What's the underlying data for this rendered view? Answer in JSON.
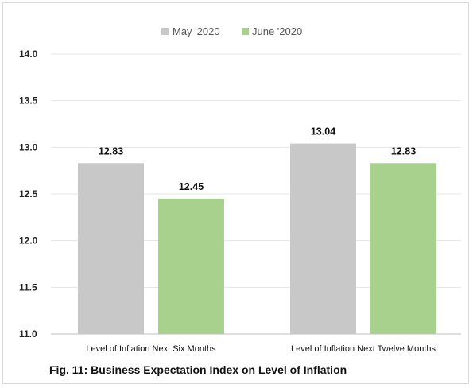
{
  "chart_data": {
    "type": "bar",
    "categories": [
      "Level of Inflation Next Six Months",
      "Level of Inflation Next Twelve Months"
    ],
    "series": [
      {
        "name": "May '2020",
        "values": [
          12.83,
          13.04
        ],
        "color": "#c8c8c8"
      },
      {
        "name": "June '2020",
        "values": [
          12.45,
          12.83
        ],
        "color": "#a9d18e"
      }
    ],
    "data_labels": [
      [
        "12.83",
        "13.04"
      ],
      [
        "12.45",
        "12.83"
      ]
    ],
    "title": "",
    "xlabel": "",
    "ylabel": "",
    "ylim": [
      11.0,
      14.0
    ],
    "yticks": [
      "11.0",
      "11.5",
      "12.0",
      "12.5",
      "13.0",
      "13.5",
      "14.0"
    ],
    "ytick_values": [
      11.0,
      11.5,
      12.0,
      12.5,
      13.0,
      13.5,
      14.0
    ],
    "grid": true,
    "legend_position": "top-center",
    "caption": "Fig. 11: Business Expectation Index on Level of Inflation"
  }
}
